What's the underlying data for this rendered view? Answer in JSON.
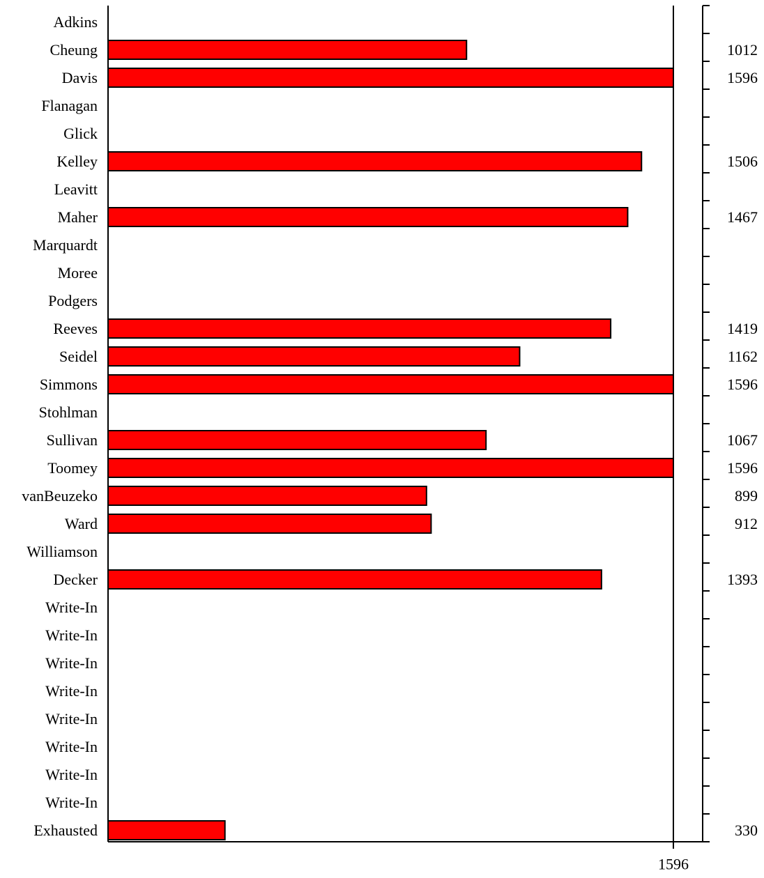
{
  "chart_data": {
    "type": "bar",
    "orientation": "horizontal",
    "categories": [
      "Adkins",
      "Cheung",
      "Davis",
      "Flanagan",
      "Glick",
      "Kelley",
      "Leavitt",
      "Maher",
      "Marquardt",
      "Moree",
      "Podgers",
      "Reeves",
      "Seidel",
      "Simmons",
      "Stohlman",
      "Sullivan",
      "Toomey",
      "vanBeuzeko",
      "Ward",
      "Williamson",
      "Decker",
      "Write-In",
      "Write-In",
      "Write-In",
      "Write-In",
      "Write-In",
      "Write-In",
      "Write-In",
      "Write-In",
      "Exhausted"
    ],
    "values": [
      0,
      1012,
      1596,
      0,
      0,
      1506,
      0,
      1467,
      0,
      0,
      0,
      1419,
      1162,
      1596,
      0,
      1067,
      1596,
      899,
      912,
      0,
      1393,
      0,
      0,
      0,
      0,
      0,
      0,
      0,
      0,
      330
    ],
    "value_labels": [
      "",
      "1012",
      "1596",
      "",
      "",
      "1506",
      "",
      "1467",
      "",
      "",
      "",
      "1419",
      "1162",
      "1596",
      "",
      "1067",
      "1596",
      "899",
      "912",
      "",
      "1393",
      "",
      "",
      "",
      "",
      "",
      "",
      "",
      "",
      "330"
    ],
    "threshold": 1596,
    "threshold_label": "1596",
    "xlim": [
      0,
      1596
    ],
    "title": "",
    "xlabel": "",
    "ylabel": "",
    "grid": false,
    "legend": "none",
    "colors": {
      "bar": "#ff0000",
      "stroke": "#000000",
      "background": "#ffffff"
    }
  }
}
